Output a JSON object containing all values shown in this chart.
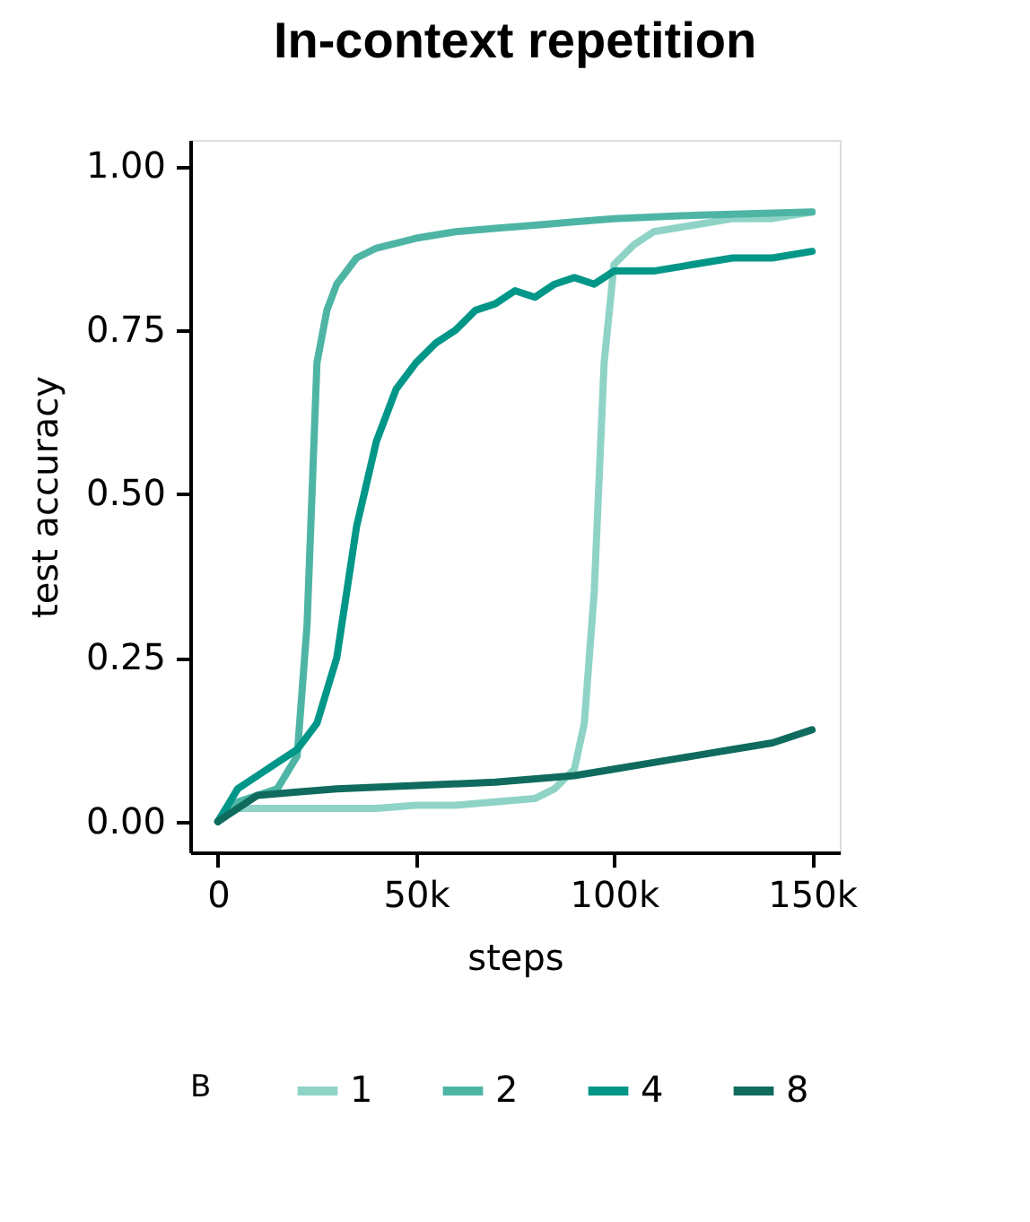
{
  "chart_data": {
    "type": "line",
    "title": "In-context repetition",
    "xlabel": "steps",
    "ylabel": "test accuracy",
    "legend_title": "B",
    "legend": "bottom",
    "grid": false,
    "xlim": [
      -7000,
      157000
    ],
    "ylim": [
      -0.047,
      1.04
    ],
    "xticks": [
      {
        "value": 0,
        "label": "0"
      },
      {
        "value": 50000,
        "label": "50k"
      },
      {
        "value": 100000,
        "label": "100k"
      },
      {
        "value": 150000,
        "label": "150k"
      }
    ],
    "yticks": [
      {
        "value": 0,
        "label": "0.00"
      },
      {
        "value": 0.25,
        "label": "0.25"
      },
      {
        "value": 0.5,
        "label": "0.50"
      },
      {
        "value": 0.75,
        "label": "0.75"
      },
      {
        "value": 1,
        "label": "1.00"
      }
    ],
    "series": [
      {
        "name": "1",
        "color": "#8fd3c7",
        "x": [
          0,
          5000,
          10000,
          20000,
          30000,
          40000,
          50000,
          60000,
          70000,
          80000,
          85000,
          90000,
          92500,
          95000,
          97500,
          100000,
          105000,
          110000,
          120000,
          130000,
          140000,
          150000
        ],
        "values": [
          0.0,
          0.02,
          0.02,
          0.02,
          0.02,
          0.02,
          0.025,
          0.025,
          0.03,
          0.035,
          0.05,
          0.08,
          0.15,
          0.35,
          0.7,
          0.85,
          0.88,
          0.9,
          0.91,
          0.92,
          0.92,
          0.93
        ]
      },
      {
        "name": "2",
        "color": "#4eb5a5",
        "x": [
          0,
          5000,
          10000,
          15000,
          20000,
          22500,
          25000,
          27500,
          30000,
          35000,
          40000,
          50000,
          60000,
          70000,
          80000,
          90000,
          100000,
          120000,
          150000
        ],
        "values": [
          0.0,
          0.03,
          0.04,
          0.05,
          0.1,
          0.3,
          0.7,
          0.78,
          0.82,
          0.86,
          0.875,
          0.89,
          0.9,
          0.905,
          0.91,
          0.915,
          0.92,
          0.925,
          0.93
        ]
      },
      {
        "name": "4",
        "color": "#009688",
        "x": [
          0,
          5000,
          10000,
          15000,
          20000,
          25000,
          30000,
          35000,
          40000,
          45000,
          50000,
          55000,
          60000,
          65000,
          70000,
          75000,
          80000,
          85000,
          90000,
          95000,
          100000,
          110000,
          120000,
          130000,
          140000,
          150000
        ],
        "values": [
          0.0,
          0.05,
          0.07,
          0.09,
          0.11,
          0.15,
          0.25,
          0.45,
          0.58,
          0.66,
          0.7,
          0.73,
          0.75,
          0.78,
          0.79,
          0.81,
          0.8,
          0.82,
          0.83,
          0.82,
          0.84,
          0.84,
          0.85,
          0.86,
          0.86,
          0.87
        ]
      },
      {
        "name": "8",
        "color": "#0f6b5d",
        "x": [
          0,
          10000,
          20000,
          30000,
          50000,
          70000,
          90000,
          100000,
          110000,
          120000,
          130000,
          140000,
          150000
        ],
        "values": [
          0.0,
          0.04,
          0.045,
          0.05,
          0.055,
          0.06,
          0.07,
          0.08,
          0.09,
          0.1,
          0.11,
          0.12,
          0.14
        ]
      }
    ]
  }
}
